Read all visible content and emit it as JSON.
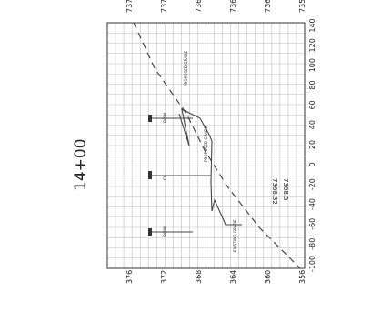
{
  "sheet": {
    "station_label": "14+00",
    "offset_left_label": "7368.32",
    "offset_right_label": "7368.5"
  },
  "elevation_axis_left": [
    "376",
    "372",
    "368",
    "364",
    "360",
    "356"
  ],
  "elevation_axis_right": [
    "7376",
    "7372",
    "7368",
    "7364",
    "7360",
    "7356"
  ],
  "offset_axis": [
    "-100",
    "-80",
    "-60",
    "-40",
    "-20",
    "0",
    "20",
    "40",
    "60",
    "80",
    "100",
    "120",
    "140"
  ],
  "annotations": {
    "proposed_grade": "PROPOSED GRADE",
    "proposed_grade_right": "PROPOSED GRADE",
    "existing_grade": "EXISTING GRADE",
    "row_left": "ROW",
    "row_right": "ROW",
    "center_line": "CL"
  },
  "colors": {
    "grid": "#bdbdbd",
    "frame": "#333333",
    "line": "#444444",
    "text": "#222222"
  }
}
